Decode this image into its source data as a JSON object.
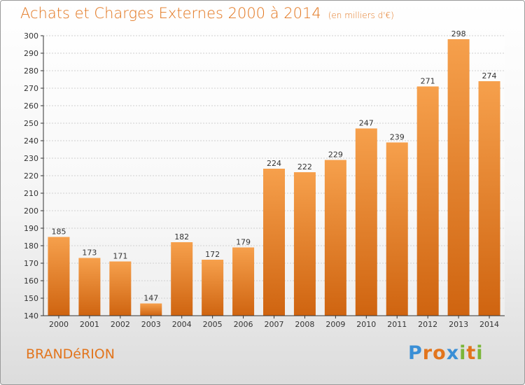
{
  "title": "Achats et Charges Externes 2000 à 2014",
  "subtitle": "(en milliers d'€)",
  "place": "BRANDéRION",
  "logo": {
    "letters": [
      "P",
      "r",
      "o",
      "x",
      "i",
      "t",
      "i"
    ],
    "colors": [
      "#3a8fd6",
      "#e2751d",
      "#e2751d",
      "#3a8fd6",
      "#7bb63a",
      "#e2751d",
      "#7bb63a"
    ]
  },
  "colors": {
    "bar_top": "#f6a04c",
    "bar_bottom": "#cf6410",
    "text": "#e2751d",
    "axis": "#333333",
    "grid": "#cfcfcf"
  },
  "chart_data": {
    "type": "bar",
    "categories": [
      "2000",
      "2001",
      "2002",
      "2003",
      "2004",
      "2005",
      "2006",
      "2007",
      "2008",
      "2009",
      "2010",
      "2011",
      "2012",
      "2013",
      "2014"
    ],
    "values": [
      185,
      173,
      171,
      147,
      182,
      172,
      179,
      224,
      222,
      229,
      247,
      239,
      271,
      298,
      274
    ],
    "ylim": [
      140,
      300
    ],
    "yticks": [
      140,
      150,
      160,
      170,
      180,
      190,
      200,
      210,
      220,
      230,
      240,
      250,
      260,
      270,
      280,
      290,
      300
    ],
    "grid": true,
    "data_labels": true
  }
}
